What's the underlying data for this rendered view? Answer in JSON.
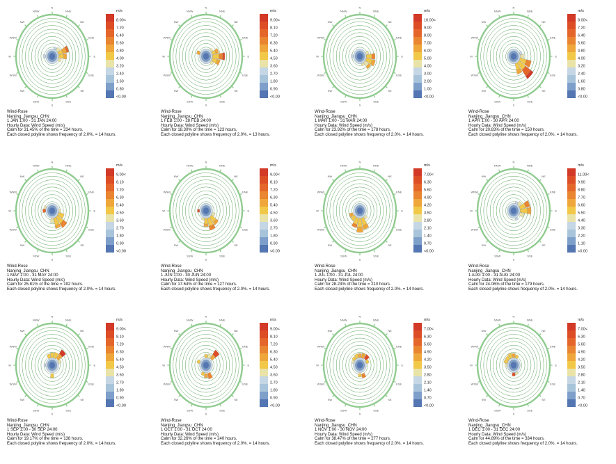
{
  "legend_unit": "m/s",
  "location": "Nanjing_Jiangsu_CHN",
  "compass": [
    "N",
    "NNE",
    "NE",
    "ENE",
    "E",
    "ESE",
    "SE",
    "SSE",
    "S",
    "SSW",
    "SW",
    "WSW",
    "W",
    "WNW",
    "NW",
    "NNW"
  ],
  "colorbar_colors": [
    "#d23927",
    "#dd4e27",
    "#e5662b",
    "#ea8531",
    "#efa73b",
    "#f1c848",
    "#e9e3a8",
    "#c5d6e5",
    "#a8c4db",
    "#7e9fca",
    "#5476b2"
  ],
  "ring_color": "#55a055",
  "outer_ring_color": "#90cb90",
  "chart_data": [
    {
      "type": "windrose",
      "month": "JAN",
      "period": "1 JAN 1:00 - 31 JAN 24:00",
      "calm_percent": 31.45,
      "calm_hours": 234,
      "polyline_frequency_percent": 2.0,
      "polyline_hours": 14,
      "scale_max": 8.0,
      "scale_labels": [
        "8.00<",
        "7.20",
        "6.40",
        "5.60",
        "4.80",
        "4.00",
        "3.20",
        "2.40",
        "1.60",
        "0.80",
        "<0.00"
      ],
      "caption": [
        "Wind-Rose",
        "Nanjing_Jiangsu_CHN",
        "1 JAN 1:00 - 31 JAN 24:00",
        "Hourly Data: Wind Speed (m/s)",
        "Calm for 31.45% of the time = 234 hours.",
        "Each closed polyline shows frequency of 2.0%. = 14 hours."
      ],
      "petals": [
        [
          2,
          0.18,
          0.27,
          6
        ],
        [
          3,
          0.18,
          0.3,
          5
        ],
        [
          3,
          0.3,
          0.41,
          4
        ],
        [
          3,
          0.41,
          0.47,
          2
        ],
        [
          4,
          0.18,
          0.32,
          5
        ],
        [
          4,
          0.32,
          0.4,
          4
        ],
        [
          5,
          0.18,
          0.26,
          6
        ],
        [
          1,
          0.18,
          0.24,
          7
        ],
        [
          12,
          0.18,
          0.25,
          7
        ]
      ]
    },
    {
      "type": "windrose",
      "month": "FEB",
      "period": "1 FEB 1:00 - 28 FEB 24:00",
      "calm_percent": 18.3,
      "calm_hours": 123,
      "polyline_frequency_percent": 2.0,
      "polyline_hours": 13,
      "scale_max": 9.0,
      "scale_labels": [
        "9.00<",
        "8.10",
        "7.20",
        "6.30",
        "5.40",
        "4.50",
        "3.60",
        "2.70",
        "1.80",
        "0.90",
        "<0.00"
      ],
      "caption": [
        "Wind-Rose",
        "Nanjing_Jiangsu_CHN",
        "1 FEB 1:00 - 28 FEB 24:00",
        "Hourly Data: Wind Speed (m/s)",
        "Calm for 18.30% of the time = 123 hours.",
        "Each closed polyline shows frequency of 2.0%. = 13 hours."
      ],
      "petals": [
        [
          3,
          0.18,
          0.28,
          5
        ],
        [
          3,
          0.28,
          0.36,
          4
        ],
        [
          4,
          0.18,
          0.36,
          5
        ],
        [
          4,
          0.36,
          0.46,
          3
        ],
        [
          4,
          0.46,
          0.52,
          1
        ],
        [
          5,
          0.18,
          0.32,
          5
        ],
        [
          5,
          0.32,
          0.4,
          4
        ],
        [
          6,
          0.18,
          0.26,
          6
        ],
        [
          13,
          0.18,
          0.27,
          4
        ],
        [
          2,
          0.18,
          0.24,
          6
        ]
      ]
    },
    {
      "type": "windrose",
      "month": "MAR",
      "period": "1 MAR 1:00 - 31 MAR 24:00",
      "calm_percent": 23.92,
      "calm_hours": 178,
      "polyline_frequency_percent": 2.0,
      "polyline_hours": 14,
      "scale_max": 10.0,
      "scale_labels": [
        "10.00<",
        "9.00",
        "8.00",
        "7.00",
        "6.00",
        "5.00",
        "4.00",
        "3.00",
        "2.00",
        "1.00",
        "<0.00"
      ],
      "caption": [
        "Wind-Rose",
        "Nanjing_Jiangsu_CHN",
        "1 MAR 1:00 - 31 MAR 24:00",
        "Hourly Data: Wind Speed (m/s)",
        "Calm for 23.92% of the time = 178 hours.",
        "Each closed polyline shows frequency of 2.0%. = 14 hours."
      ],
      "petals": [
        [
          4,
          0.18,
          0.33,
          5
        ],
        [
          4,
          0.33,
          0.42,
          3
        ],
        [
          5,
          0.18,
          0.35,
          5
        ],
        [
          5,
          0.35,
          0.44,
          4
        ],
        [
          6,
          0.18,
          0.3,
          6
        ],
        [
          6,
          0.3,
          0.37,
          4
        ],
        [
          3,
          0.18,
          0.26,
          6
        ],
        [
          12,
          0.18,
          0.24,
          7
        ],
        [
          7,
          0.18,
          0.24,
          6
        ]
      ]
    },
    {
      "type": "windrose",
      "month": "APR",
      "period": "1 APR 1:00 - 30 APR 24:00",
      "calm_percent": 20.83,
      "calm_hours": 150,
      "polyline_frequency_percent": 2.0,
      "polyline_hours": 14,
      "scale_max": 8.0,
      "scale_labels": [
        "8.00<",
        "7.20",
        "6.40",
        "5.60",
        "4.80",
        "4.00",
        "3.20",
        "2.40",
        "1.60",
        "0.80",
        "<0.00"
      ],
      "caption": [
        "Wind-Rose",
        "Nanjing_Jiangsu_CHN",
        "1 APR 1:00 - 30 APR 24:00",
        "Hourly Data: Wind Speed (m/s)",
        "Calm for 20.83% of the time = 150 hours.",
        "Each closed polyline shows frequency of 2.0%. = 14 hours."
      ],
      "petals": [
        [
          4,
          0.18,
          0.28,
          6
        ],
        [
          5,
          0.18,
          0.36,
          5
        ],
        [
          5,
          0.36,
          0.5,
          3
        ],
        [
          6,
          0.18,
          0.4,
          5
        ],
        [
          6,
          0.4,
          0.58,
          2
        ],
        [
          6,
          0.58,
          0.66,
          0
        ],
        [
          7,
          0.18,
          0.34,
          5
        ],
        [
          7,
          0.34,
          0.44,
          4
        ],
        [
          3,
          0.18,
          0.24,
          7
        ]
      ]
    },
    {
      "type": "windrose",
      "month": "MAY",
      "period": "1 MAY 1:00 - 31 MAY 24:00",
      "calm_percent": 25.81,
      "calm_hours": 192,
      "polyline_frequency_percent": 2.0,
      "polyline_hours": 14,
      "scale_max": 9.0,
      "scale_labels": [
        "9.00<",
        "8.10",
        "7.20",
        "6.30",
        "5.40",
        "4.50",
        "3.60",
        "2.70",
        "1.80",
        "0.90",
        "<0.00"
      ],
      "caption": [
        "Wind-Rose",
        "Nanjing_Jiangsu_CHN",
        "1 MAY 1:00 - 31 MAY 24:00",
        "Hourly Data: Wind Speed (m/s)",
        "Calm for 25.81% of the time = 192 hours.",
        "Each closed polyline shows frequency of 2.0%. = 14 hours."
      ],
      "petals": [
        [
          5,
          0.18,
          0.34,
          5
        ],
        [
          6,
          0.18,
          0.38,
          5
        ],
        [
          6,
          0.38,
          0.5,
          3
        ],
        [
          7,
          0.18,
          0.36,
          5
        ],
        [
          7,
          0.36,
          0.44,
          4
        ],
        [
          8,
          0.18,
          0.28,
          6
        ],
        [
          12,
          0.18,
          0.26,
          2
        ],
        [
          13,
          0.18,
          0.24,
          6
        ],
        [
          4,
          0.18,
          0.24,
          6
        ]
      ]
    },
    {
      "type": "windrose",
      "month": "JUN",
      "period": "1 JUN 1:00 - 30 JUN 24:00",
      "calm_percent": 17.64,
      "calm_hours": 127,
      "polyline_frequency_percent": 2.0,
      "polyline_hours": 14,
      "scale_max": 9.0,
      "scale_labels": [
        "9.00<",
        "8.10",
        "7.20",
        "6.30",
        "5.40",
        "4.50",
        "3.60",
        "2.70",
        "1.80",
        "0.90",
        "<0.00"
      ],
      "caption": [
        "Wind-Rose",
        "Nanjing_Jiangsu_CHN",
        "1 JUN 1:00 - 30 JUN 24:00",
        "Hourly Data: Wind Speed (m/s)",
        "Calm for 17.64% of the time = 127 hours.",
        "Each closed polyline shows frequency of 2.0%. = 14 hours."
      ],
      "petals": [
        [
          5,
          0.18,
          0.26,
          6
        ],
        [
          6,
          0.18,
          0.34,
          5
        ],
        [
          6,
          0.34,
          0.42,
          4
        ],
        [
          7,
          0.18,
          0.38,
          5
        ],
        [
          7,
          0.38,
          0.48,
          3
        ],
        [
          8,
          0.18,
          0.32,
          5
        ],
        [
          8,
          0.32,
          0.38,
          4
        ],
        [
          12,
          0.18,
          0.24,
          1
        ],
        [
          9,
          0.18,
          0.24,
          6
        ]
      ]
    },
    {
      "type": "windrose",
      "month": "JUL",
      "period": "1 JUL 1:00 - 31 JUL 24:00",
      "calm_percent": 28.23,
      "calm_hours": 210,
      "polyline_frequency_percent": 2.0,
      "polyline_hours": 14,
      "scale_max": 7.0,
      "scale_labels": [
        "7.00<",
        "6.30",
        "5.60",
        "4.90",
        "4.20",
        "3.50",
        "2.80",
        "2.10",
        "1.40",
        "0.70",
        "<0.00"
      ],
      "caption": [
        "Wind-Rose",
        "Nanjing_Jiangsu_CHN",
        "1 JUL 1:00 - 31 JUL 24:00",
        "Hourly Data: Wind Speed (m/s)",
        "Calm for 28.23% of the time = 210 hours.",
        "Each closed polyline shows frequency of 2.0%. = 14 hours."
      ],
      "petals": [
        [
          6,
          0.18,
          0.26,
          6
        ],
        [
          7,
          0.18,
          0.36,
          5
        ],
        [
          7,
          0.36,
          0.46,
          4
        ],
        [
          8,
          0.18,
          0.4,
          5
        ],
        [
          8,
          0.4,
          0.52,
          4
        ],
        [
          9,
          0.18,
          0.34,
          5
        ],
        [
          9,
          0.34,
          0.42,
          3
        ],
        [
          10,
          0.18,
          0.3,
          5
        ],
        [
          11,
          0.2,
          0.3,
          4
        ]
      ]
    },
    {
      "type": "windrose",
      "month": "AUG",
      "period": "1 AUG 1:00 - 31 AUG 24:00",
      "calm_percent": 24.06,
      "calm_hours": 179,
      "polyline_frequency_percent": 2.0,
      "polyline_hours": 14,
      "scale_max": 11.0,
      "scale_labels": [
        "11.00<",
        "9.90",
        "8.80",
        "7.70",
        "6.60",
        "5.50",
        "4.40",
        "3.30",
        "2.20",
        "1.10",
        "<0.00"
      ],
      "caption": [
        "Wind-Rose",
        "Nanjing_Jiangsu_CHN",
        "1 AUG 1:00 - 31 AUG 24:00",
        "Hourly Data: Wind Speed (m/s)",
        "Calm for 24.06% of the time = 179 hours.",
        "Each closed polyline shows frequency of 2.0%. = 14 hours."
      ],
      "petals": [
        [
          2,
          0.18,
          0.28,
          6
        ],
        [
          3,
          0.18,
          0.34,
          5
        ],
        [
          3,
          0.34,
          0.46,
          3
        ],
        [
          4,
          0.18,
          0.38,
          5
        ],
        [
          4,
          0.38,
          0.48,
          4
        ],
        [
          5,
          0.18,
          0.3,
          6
        ],
        [
          7,
          0.18,
          0.24,
          7
        ],
        [
          1,
          0.18,
          0.24,
          7
        ]
      ]
    },
    {
      "type": "windrose",
      "month": "SEP",
      "period": "1 SEP 1:00 - 30 SEP 24:00",
      "calm_percent": 19.17,
      "calm_hours": 138,
      "polyline_frequency_percent": 2.0,
      "polyline_hours": 14,
      "scale_max": 9.0,
      "scale_labels": [
        "9.00<",
        "8.10",
        "7.20",
        "6.30",
        "5.40",
        "4.50",
        "3.60",
        "2.70",
        "1.80",
        "0.90",
        "<0.00"
      ],
      "caption": [
        "Wind-Rose",
        "Nanjing_Jiangsu_CHN",
        "1 SEP 1:00 - 30 SEP 24:00",
        "Hourly Data: Wind Speed (m/s)",
        "Calm for 19.17% of the time = 138 hours.",
        "Each closed polyline shows frequency of 2.0%. = 14 hours."
      ],
      "petals": [
        [
          15,
          0.18,
          0.28,
          5
        ],
        [
          0,
          0.18,
          0.3,
          5
        ],
        [
          1,
          0.18,
          0.32,
          5
        ],
        [
          2,
          0.2,
          0.34,
          4
        ],
        [
          2,
          0.34,
          0.46,
          0
        ],
        [
          3,
          0.18,
          0.26,
          6
        ],
        [
          8,
          0.2,
          0.3,
          5
        ],
        [
          12,
          0.18,
          0.23,
          7
        ]
      ]
    },
    {
      "type": "windrose",
      "month": "OCT",
      "period": "1 OCT 1:00 - 31 OCT 24:00",
      "calm_percent": 32.26,
      "calm_hours": 240,
      "polyline_frequency_percent": 2.0,
      "polyline_hours": 14,
      "scale_max": 9.0,
      "scale_labels": [
        "9.00<",
        "8.10",
        "7.20",
        "6.30",
        "5.40",
        "4.50",
        "3.60",
        "2.70",
        "1.80",
        "0.90",
        "<0.00"
      ],
      "caption": [
        "Wind-Rose",
        "Nanjing_Jiangsu_CHN",
        "1 OCT 1:00 - 31 OCT 24:00",
        "Hourly Data: Wind Speed (m/s)",
        "Calm for 32.26% of the time = 240 hours.",
        "Each closed polyline shows frequency of 2.0%. = 14 hours."
      ],
      "petals": [
        [
          13,
          0.18,
          0.26,
          5
        ],
        [
          0,
          0.18,
          0.26,
          5
        ],
        [
          1,
          0.18,
          0.28,
          6
        ],
        [
          2,
          0.2,
          0.32,
          4
        ],
        [
          2,
          0.32,
          0.45,
          1
        ],
        [
          7,
          0.2,
          0.34,
          3
        ],
        [
          8,
          0.2,
          0.3,
          4
        ],
        [
          9,
          0.18,
          0.26,
          5
        ]
      ]
    },
    {
      "type": "windrose",
      "month": "NOV",
      "period": "1 NOV 1:00 - 30 NOV 24:00",
      "calm_percent": 38.47,
      "calm_hours": 277,
      "polyline_frequency_percent": 2.0,
      "polyline_hours": 14,
      "scale_max": 7.0,
      "scale_labels": [
        "7.00<",
        "6.30",
        "5.60",
        "4.90",
        "4.20",
        "3.50",
        "2.80",
        "2.10",
        "1.40",
        "0.70",
        "<0.00"
      ],
      "caption": [
        "Wind-Rose",
        "Nanjing_Jiangsu_CHN",
        "1 NOV 1:00 - 30 NOV 24:00",
        "Hourly Data: Wind Speed (m/s)",
        "Calm for 38.47% of the time = 277 hours.",
        "Each closed polyline shows frequency of 2.0%. = 14 hours."
      ],
      "petals": [
        [
          13,
          0.18,
          0.24,
          6
        ],
        [
          14,
          0.18,
          0.26,
          5
        ],
        [
          15,
          0.18,
          0.28,
          5
        ],
        [
          0,
          0.18,
          0.28,
          4
        ],
        [
          1,
          0.18,
          0.3,
          4
        ],
        [
          2,
          0.2,
          0.32,
          1
        ],
        [
          3,
          0.18,
          0.26,
          5
        ],
        [
          7,
          0.22,
          0.32,
          3
        ],
        [
          8,
          0.2,
          0.28,
          5
        ]
      ]
    },
    {
      "type": "windrose",
      "month": "DEC",
      "period": "1 DEC 1:00 - 31 DEC 24:00",
      "calm_percent": 44.89,
      "calm_hours": 334,
      "polyline_frequency_percent": 2.0,
      "polyline_hours": 14,
      "scale_max": 7.0,
      "scale_labels": [
        "7.00<",
        "6.30",
        "5.60",
        "4.90",
        "4.20",
        "3.50",
        "2.80",
        "2.10",
        "1.40",
        "0.70",
        "<0.00"
      ],
      "caption": [
        "Wind-Rose",
        "Nanjing_Jiangsu_CHN",
        "1 DEC 1:00 - 31 DEC 24:00",
        "Hourly Data: Wind Speed (m/s)",
        "Calm for 44.89% of the time = 334 hours.",
        "Each closed polyline shows frequency of 2.0%. = 14 hours."
      ],
      "petals": [
        [
          13,
          0.18,
          0.28,
          5
        ],
        [
          14,
          0.18,
          0.28,
          5
        ],
        [
          15,
          0.18,
          0.3,
          5
        ],
        [
          0,
          0.18,
          0.28,
          4
        ],
        [
          1,
          0.18,
          0.26,
          5
        ],
        [
          12,
          0.18,
          0.24,
          6
        ],
        [
          8,
          0.18,
          0.26,
          1
        ],
        [
          7,
          0.18,
          0.24,
          6
        ]
      ]
    }
  ]
}
